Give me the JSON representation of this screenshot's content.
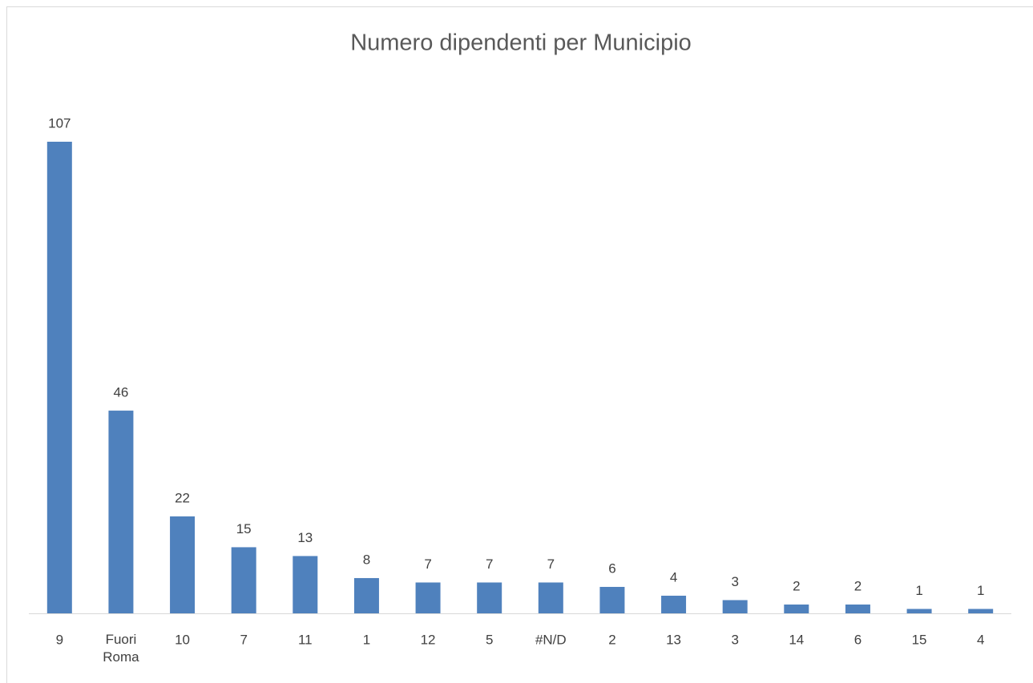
{
  "chart_data": {
    "type": "bar",
    "title": "Numero dipendenti per Municipio",
    "categories": [
      "9",
      "Fuori Roma",
      "10",
      "7",
      "11",
      "1",
      "12",
      "5",
      "#N/D",
      "2",
      "13",
      "3",
      "14",
      "6",
      "15",
      "4"
    ],
    "values": [
      107,
      46,
      22,
      15,
      13,
      8,
      7,
      7,
      7,
      6,
      4,
      3,
      2,
      2,
      1,
      1
    ],
    "color": "#4f81bd"
  }
}
